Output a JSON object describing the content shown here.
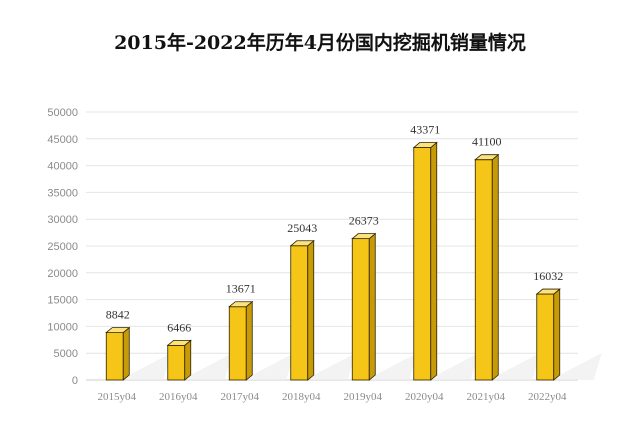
{
  "chart_data": {
    "type": "bar",
    "title": "2015年-2022年历年4月份国内挖掘机销量情况",
    "categories": [
      "2015y04",
      "2016y04",
      "2017y04",
      "2018y04",
      "2019y04",
      "2020y04",
      "2021y04",
      "2022y04"
    ],
    "values": [
      8842,
      6466,
      13671,
      25043,
      26373,
      43371,
      41100,
      16032
    ],
    "data_labels": [
      "8842",
      "6466",
      "13671",
      "25043",
      "26373",
      "43371",
      "41100",
      "16032"
    ],
    "y_ticks": [
      "0",
      "5000",
      "10000",
      "15000",
      "20000",
      "25000",
      "30000",
      "35000",
      "40000",
      "45000",
      "50000"
    ],
    "ylim": [
      0,
      50000
    ],
    "grid": true,
    "legend": "none",
    "bar_color": "#f5c518",
    "bar_side_color": "#c79a08",
    "bar_top_color": "#fbe27a",
    "bar_outline_color": "#2b2100"
  }
}
